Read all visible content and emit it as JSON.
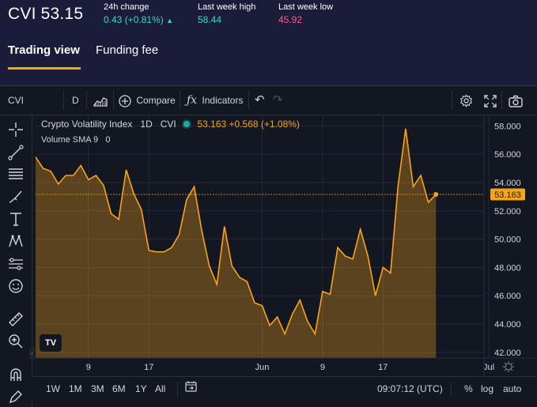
{
  "header": {
    "ticker": "CVI 53.15",
    "change_label": "24h change",
    "change_value": "0.43 (+0.81%)",
    "high_label": "Last week high",
    "high_value": "58.44",
    "low_label": "Last week low",
    "low_value": "45.92",
    "colors": {
      "positive": "#3dd6c6",
      "negative": "#f06292",
      "accent": "#f7a31c"
    }
  },
  "tabs": [
    {
      "label": "Trading view",
      "active": true
    },
    {
      "label": "Funding fee",
      "active": false
    }
  ],
  "toolbar": {
    "symbol": "CVI",
    "interval": "D",
    "compare_label": "Compare",
    "indicators_label": "Indicators"
  },
  "left_tools": [
    "crosshair-icon",
    "trend-line-icon",
    "fib-icon",
    "brush-icon",
    "text-icon",
    "pattern-icon",
    "forecast-icon",
    "emoji-icon",
    "ruler-icon",
    "zoom-icon",
    "magnet-icon",
    "pencil-lock-icon"
  ],
  "legend": {
    "name": "Crypto Volatility Index",
    "interval": "1D",
    "symbol": "CVI",
    "last": "53.163",
    "change": "+0.568 (+1.08%)",
    "volume": "Volume SMA 9",
    "volume_value": "0"
  },
  "chart_data": {
    "type": "area",
    "x": [
      "May 2",
      "May 3",
      "May 4",
      "May 5",
      "May 6",
      "May 7",
      "May 8",
      "May 9",
      "May 10",
      "May 11",
      "May 12",
      "May 13",
      "May 14",
      "May 15",
      "May 16",
      "May 17",
      "May 18",
      "May 19",
      "May 20",
      "May 21",
      "May 22",
      "May 23",
      "May 24",
      "May 25",
      "May 26",
      "May 27",
      "May 28",
      "May 29",
      "May 30",
      "May 31",
      "Jun 1",
      "Jun 2",
      "Jun 3",
      "Jun 4",
      "Jun 5",
      "Jun 6",
      "Jun 7",
      "Jun 8",
      "Jun 9",
      "Jun 10",
      "Jun 11",
      "Jun 12",
      "Jun 13",
      "Jun 14",
      "Jun 15",
      "Jun 16",
      "Jun 17",
      "Jun 18",
      "Jun 19",
      "Jun 20",
      "Jun 21",
      "Jun 22",
      "Jun 23",
      "Jun 24",
      "Jun 25"
    ],
    "series": [
      {
        "values": [
          55.8,
          55.0,
          54.8,
          53.9,
          54.5,
          54.5,
          55.2,
          54.2,
          54.5,
          53.8,
          51.8,
          51.4,
          54.9,
          53.2,
          52.1,
          49.2,
          49.1,
          49.1,
          49.4,
          50.3,
          52.8,
          53.7,
          50.6,
          48.1,
          46.8,
          50.9,
          48.1,
          47.3,
          47.0,
          45.5,
          45.3,
          43.9,
          44.5,
          43.3,
          44.7,
          45.7,
          44.2,
          43.3,
          46.3,
          46.1,
          49.4,
          48.8,
          48.6,
          50.7,
          48.8,
          46.0,
          48.0,
          47.6,
          53.8,
          57.8,
          53.7,
          54.5,
          52.6,
          53.163,
          null
        ],
        "color": "#f7a31c"
      }
    ],
    "x_ticks": [
      {
        "label": "9",
        "at": "May 9"
      },
      {
        "label": "17",
        "at": "May 17"
      },
      {
        "label": "Jun",
        "at": "Jun 1"
      },
      {
        "label": "9",
        "at": "Jun 9"
      },
      {
        "label": "17",
        "at": "Jun 17"
      },
      {
        "label": "Jul",
        "at": "Jul 1"
      }
    ],
    "y_ticks": [
      "58.000",
      "56.000",
      "54.000",
      "52.000",
      "50.000",
      "48.000",
      "46.000",
      "44.000",
      "42.000"
    ],
    "ylim": [
      41.6,
      58.8
    ],
    "last_value_label": "53.163",
    "grid": true,
    "xlabel": "",
    "ylabel": ""
  },
  "bottom": {
    "ranges": [
      "1W",
      "1M",
      "3M",
      "6M",
      "1Y",
      "All"
    ],
    "time": "09:07:12 (UTC)",
    "percent_label": "%",
    "log_label": "log",
    "auto_label": "auto"
  }
}
